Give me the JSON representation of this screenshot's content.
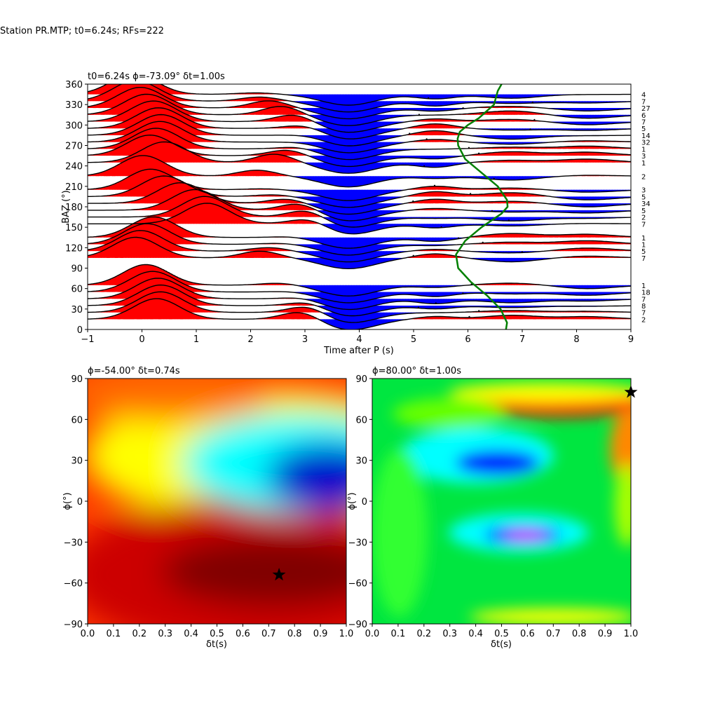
{
  "figure": {
    "suptitle": "Station PR.MTP; t0=6.24s; RFs=222"
  },
  "chart_data": [
    {
      "type": "line",
      "subtype": "wiggle-traces-with-fill",
      "title": "t0=6.24s ϕ=-73.09° δt=1.00s",
      "xlabel": "Time after P (s)",
      "ylabel": "BAZ (°)",
      "xlim": [
        -1,
        9
      ],
      "ylim": [
        0,
        360
      ],
      "xticks": [
        "−1",
        "0",
        "1",
        "2",
        "3",
        "4",
        "5",
        "6",
        "7",
        "8",
        "9"
      ],
      "yticks": [
        "0",
        "30",
        "60",
        "90",
        "120",
        "150",
        "180",
        "210",
        "240",
        "270",
        "300",
        "330",
        "360"
      ],
      "grid": false,
      "positive_fill_color": "#ff0000",
      "negative_fill_color": "#0000ff",
      "trace_color": "#000000",
      "curve_color": "#008000",
      "bin_counts": [
        {
          "baz": 345,
          "count": "4"
        },
        {
          "baz": 335,
          "count": "7"
        },
        {
          "baz": 325,
          "count": "27"
        },
        {
          "baz": 315,
          "count": "6"
        },
        {
          "baz": 305,
          "count": "7"
        },
        {
          "baz": 295,
          "count": "5"
        },
        {
          "baz": 285,
          "count": "14"
        },
        {
          "baz": 275,
          "count": "32"
        },
        {
          "baz": 265,
          "count": "1"
        },
        {
          "baz": 255,
          "count": "3"
        },
        {
          "baz": 245,
          "count": "1"
        },
        {
          "baz": 225,
          "count": "2"
        },
        {
          "baz": 205,
          "count": "3"
        },
        {
          "baz": 195,
          "count": "5"
        },
        {
          "baz": 185,
          "count": "34"
        },
        {
          "baz": 175,
          "count": "5"
        },
        {
          "baz": 165,
          "count": "2"
        },
        {
          "baz": 155,
          "count": "7"
        },
        {
          "baz": 135,
          "count": "1"
        },
        {
          "baz": 125,
          "count": "1"
        },
        {
          "baz": 115,
          "count": "5"
        },
        {
          "baz": 105,
          "count": "7"
        },
        {
          "baz": 65,
          "count": "1"
        },
        {
          "baz": 55,
          "count": "18"
        },
        {
          "baz": 45,
          "count": "7"
        },
        {
          "baz": 35,
          "count": "8"
        },
        {
          "baz": 25,
          "count": "7"
        },
        {
          "baz": 15,
          "count": "2"
        }
      ],
      "green_curve": {
        "baz": [
          0,
          10,
          30,
          50,
          70,
          90,
          110,
          130,
          150,
          170,
          180,
          190,
          210,
          230,
          250,
          270,
          280,
          290,
          300,
          310,
          330,
          350,
          360
        ],
        "time": [
          6.7,
          6.72,
          6.6,
          6.35,
          6.05,
          5.82,
          5.78,
          5.95,
          6.25,
          6.62,
          6.73,
          6.72,
          6.55,
          6.25,
          5.95,
          5.82,
          5.81,
          5.85,
          6.0,
          6.2,
          6.48,
          6.55,
          6.62
        ]
      }
    },
    {
      "type": "heatmap",
      "title": "ϕ=-54.00° δt=0.74s",
      "xlabel": "δt(s)",
      "ylabel": "ϕ(°)",
      "xlim": [
        0.0,
        1.0
      ],
      "ylim": [
        -90,
        90
      ],
      "xticks": [
        "0.0",
        "0.1",
        "0.2",
        "0.3",
        "0.4",
        "0.5",
        "0.6",
        "0.7",
        "0.8",
        "0.9",
        "1.0"
      ],
      "yticks": [
        "−90",
        "−60",
        "−30",
        "0",
        "30",
        "60",
        "90"
      ],
      "colormap": "jet",
      "marker": {
        "x": 0.74,
        "y": -54.0,
        "symbol": "star"
      }
    },
    {
      "type": "heatmap",
      "title": "ϕ=80.00° δt=1.00s",
      "xlabel": "δt(s)",
      "ylabel": "ϕ(°)",
      "xlim": [
        0.0,
        1.0
      ],
      "ylim": [
        -90,
        90
      ],
      "xticks": [
        "0.0",
        "0.1",
        "0.2",
        "0.3",
        "0.4",
        "0.5",
        "0.6",
        "0.7",
        "0.8",
        "0.9",
        "1.0"
      ],
      "yticks": [
        "−90",
        "−60",
        "−30",
        "0",
        "30",
        "60",
        "90"
      ],
      "colormap": "hsv",
      "marker": {
        "x": 1.0,
        "y": 80.0,
        "symbol": "star"
      }
    }
  ]
}
